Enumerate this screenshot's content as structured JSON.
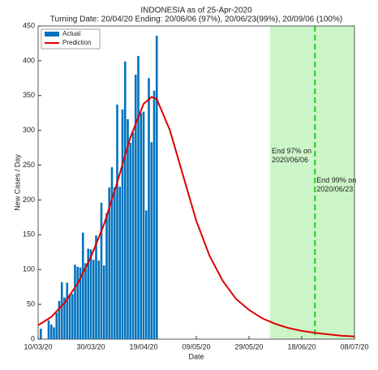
{
  "chart_data": {
    "type": "bar",
    "title": "INDONESIA as of 25-Apr-2020",
    "subtitle": "Turning Date: 20/04/20  Ending: 20/06/06 (97%), 20/06/23(99%), 20/09/06 (100%)",
    "x_label": "Date",
    "y_label": "New Cases / Day",
    "xlim": [
      "2020-03-10",
      "2020-07-08"
    ],
    "xticks": [
      {
        "value": "2020-03-10",
        "label": "10/03/20"
      },
      {
        "value": "2020-03-30",
        "label": "30/03/20"
      },
      {
        "value": "2020-04-19",
        "label": "19/04/20"
      },
      {
        "value": "2020-05-09",
        "label": "09/05/20"
      },
      {
        "value": "2020-05-29",
        "label": "29/05/20"
      },
      {
        "value": "2020-06-18",
        "label": "18/06/20"
      },
      {
        "value": "2020-07-08",
        "label": "08/07/20"
      }
    ],
    "ylim": [
      0,
      450
    ],
    "yticks": [
      0,
      50,
      100,
      150,
      200,
      250,
      300,
      350,
      400,
      450
    ],
    "legend": "top-left",
    "shade_start": "2020-06-06",
    "shade_color": "#ccf5c8",
    "end_line": "2020-06-23",
    "end_line_color": "#22cc22",
    "annotations": [
      {
        "lines": [
          "End 97% on",
          "2020/06/06"
        ],
        "x": "2020-06-06",
        "y": 270
      },
      {
        "lines": [
          "End 99% on",
          "2020/06/23"
        ],
        "x": "2020-06-23",
        "y": 228
      }
    ],
    "series": [
      {
        "name": "Actual",
        "type": "bar",
        "color": "#0072bd",
        "x": [
          "2020-03-11",
          "2020-03-14",
          "2020-03-15",
          "2020-03-16",
          "2020-03-17",
          "2020-03-18",
          "2020-03-19",
          "2020-03-20",
          "2020-03-21",
          "2020-03-22",
          "2020-03-23",
          "2020-03-24",
          "2020-03-25",
          "2020-03-26",
          "2020-03-27",
          "2020-03-28",
          "2020-03-29",
          "2020-03-30",
          "2020-03-31",
          "2020-04-01",
          "2020-04-02",
          "2020-04-03",
          "2020-04-04",
          "2020-04-05",
          "2020-04-06",
          "2020-04-07",
          "2020-04-08",
          "2020-04-09",
          "2020-04-10",
          "2020-04-11",
          "2020-04-12",
          "2020-04-13",
          "2020-04-14",
          "2020-04-15",
          "2020-04-16",
          "2020-04-17",
          "2020-04-18",
          "2020-04-19",
          "2020-04-20",
          "2020-04-21",
          "2020-04-22",
          "2020-04-23",
          "2020-04-24"
        ],
        "values": [
          15,
          27,
          21,
          17,
          38,
          55,
          82,
          60,
          81,
          64,
          65,
          107,
          104,
          103,
          153,
          109,
          130,
          129,
          114,
          149,
          113,
          196,
          106,
          181,
          218,
          247,
          218,
          337,
          219,
          330,
          399,
          316,
          282,
          297,
          380,
          407,
          325,
          327,
          185,
          375,
          283,
          357,
          436
        ]
      },
      {
        "name": "Prediction",
        "type": "line",
        "color": "#dd0000",
        "x": [
          "2020-03-10",
          "2020-03-15",
          "2020-03-20",
          "2020-03-25",
          "2020-03-30",
          "2020-04-04",
          "2020-04-09",
          "2020-04-14",
          "2020-04-19",
          "2020-04-22",
          "2020-04-24",
          "2020-04-29",
          "2020-05-04",
          "2020-05-09",
          "2020-05-14",
          "2020-05-19",
          "2020-05-24",
          "2020-05-29",
          "2020-06-03",
          "2020-06-08",
          "2020-06-13",
          "2020-06-18",
          "2020-06-23",
          "2020-06-28",
          "2020-07-03",
          "2020-07-08"
        ],
        "values": [
          20,
          32,
          52,
          80,
          118,
          165,
          225,
          290,
          338,
          348,
          345,
          300,
          235,
          170,
          120,
          84,
          58,
          42,
          30,
          22,
          16,
          12,
          9,
          7,
          5,
          4
        ]
      }
    ]
  }
}
